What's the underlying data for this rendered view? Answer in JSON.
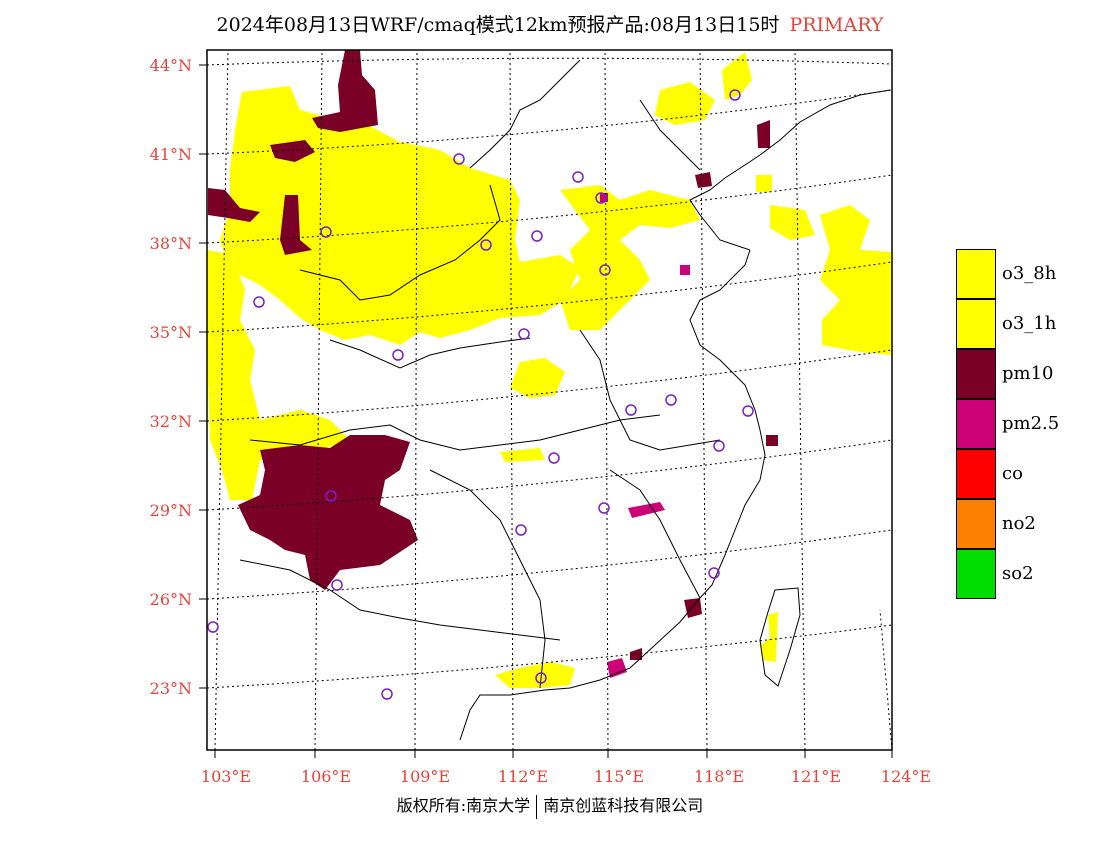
{
  "title": {
    "main": "2024年08月13日WRF/cmaq模式12km预报产品:08月13日15时",
    "tag": "PRIMARY"
  },
  "axes": {
    "lat_labels": [
      "44°N",
      "41°N",
      "38°N",
      "35°N",
      "32°N",
      "29°N",
      "26°N",
      "23°N"
    ],
    "lon_labels": [
      "103°E",
      "106°E",
      "109°E",
      "112°E",
      "115°E",
      "118°E",
      "121°E",
      "124°E"
    ]
  },
  "legend": [
    {
      "label": "o3_8h",
      "color": "#ffff00"
    },
    {
      "label": "o3_1h",
      "color": "#ffff00"
    },
    {
      "label": "pm10",
      "color": "#7a0028"
    },
    {
      "label": "pm2.5",
      "color": "#cc0077"
    },
    {
      "label": "co",
      "color": "#ff0000"
    },
    {
      "label": "no2",
      "color": "#ff7f00"
    },
    {
      "label": "so2",
      "color": "#00dd00"
    }
  ],
  "footer": {
    "left": "版权所有:南京大学",
    "right": "南京创蓝科技有限公司"
  },
  "colors": {
    "label_red": "#e8423a",
    "station_circle": "#7a1fcc"
  }
}
